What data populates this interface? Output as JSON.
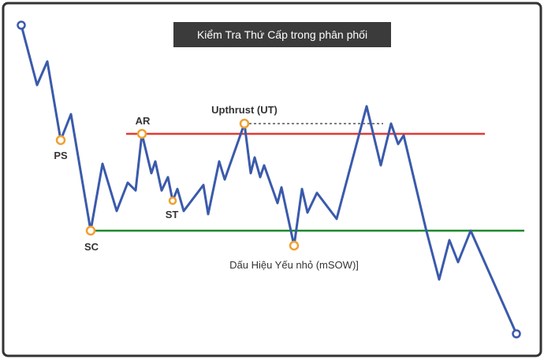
{
  "title": "Kiểm Tra Thứ Cấp trong phân phối",
  "labels": {
    "ps": "PS",
    "ar": "AR",
    "sc": "SC",
    "st": "ST",
    "ut": "Upthrust (UT)",
    "msow": "Dấu Hiệu Yếu nhỏ (mSOW)]"
  }
}
